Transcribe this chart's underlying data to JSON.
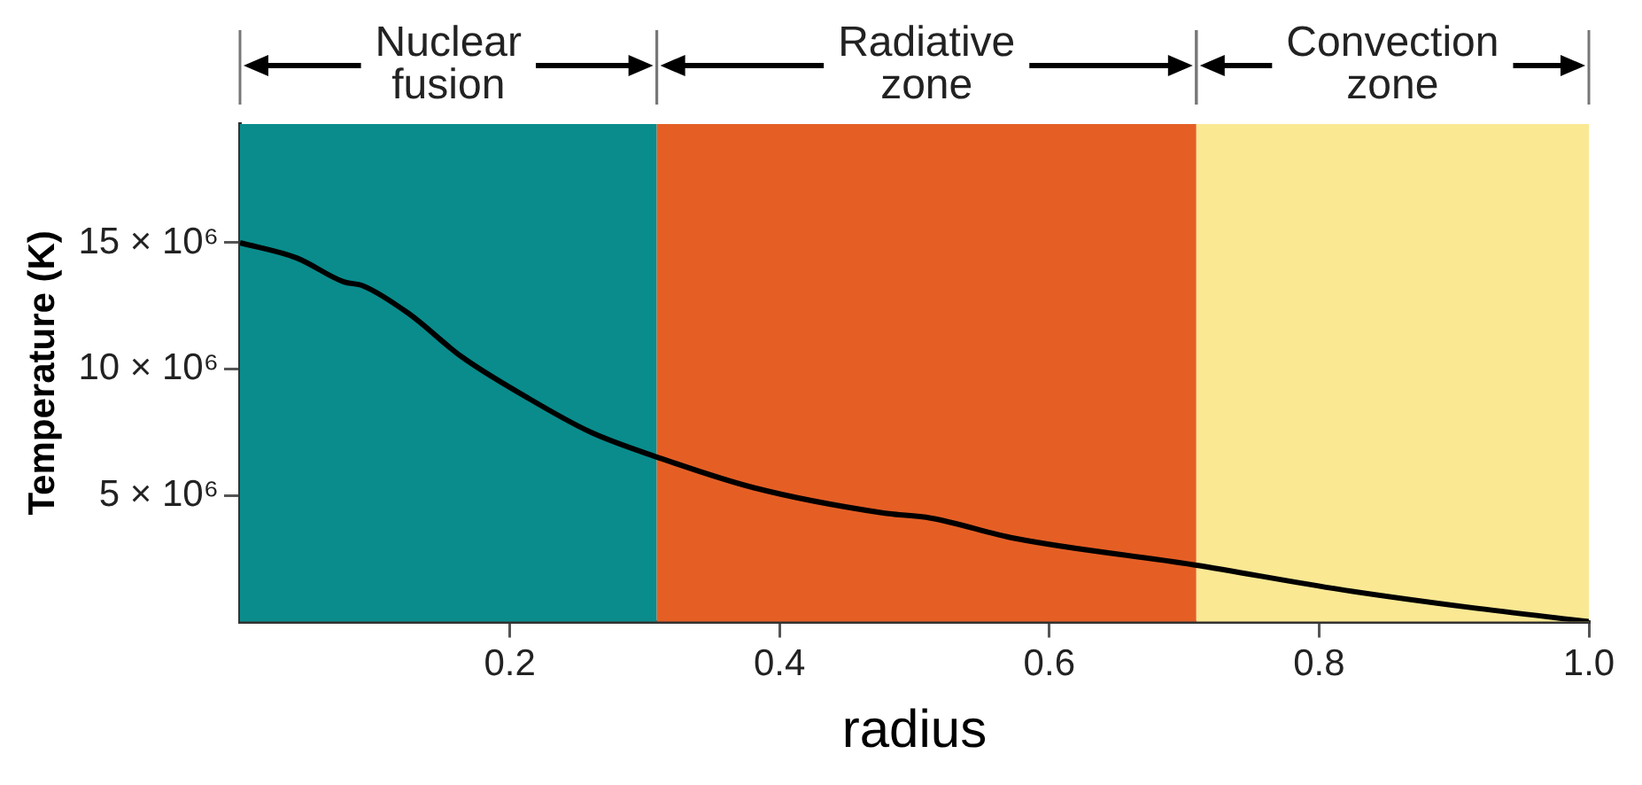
{
  "chart_data": {
    "type": "line",
    "xlabel": "radius",
    "ylabel": "Temperature (K)",
    "xlim": [
      0,
      1
    ],
    "xticks": [
      0.2,
      0.4,
      0.6,
      0.8,
      {
        "value": 1,
        "label": "1.0"
      }
    ],
    "ylim": [
      0,
      19700000
    ],
    "yticks": [
      {
        "value": 5000000,
        "label": "5 × 10⁶"
      },
      {
        "value": 10000000,
        "label": "10 × 10⁶"
      },
      {
        "value": 15000000,
        "label": "15 × 10⁶"
      }
    ],
    "grid": false,
    "series": [
      {
        "color": "#000000",
        "x": [
          0,
          0.042,
          0.077,
          0.091,
          0.125,
          0.164,
          0.212,
          0.26,
          0.31,
          0.381,
          0.477,
          0.512,
          0.574,
          0.707,
          0.816,
          0.912,
          1.0
        ],
        "values": [
          15000000,
          14400000,
          13450000,
          13300000,
          12200000,
          10500000,
          8900000,
          7500000,
          6500000,
          5300000,
          4300000,
          4100000,
          3300000,
          2250000,
          1270000,
          560000,
          0
        ]
      }
    ],
    "bands": [
      {
        "axis": "x",
        "from": 0,
        "to": 0.309,
        "label": "Nuclear fusion",
        "color": "#0a8c8c"
      },
      {
        "axis": "x",
        "from": 0.309,
        "to": 0.709,
        "label": "Radiative zone",
        "color": "#e55f25"
      },
      {
        "axis": "x",
        "from": 0.709,
        "to": 1.0,
        "label": "Convection zone",
        "color": "#fae893"
      }
    ]
  }
}
